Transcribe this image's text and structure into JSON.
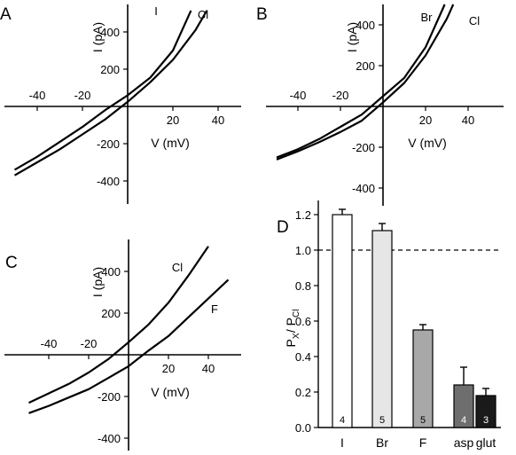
{
  "colors": {
    "ink": "#000000",
    "bar_I": "#ffffff",
    "bar_Br": "#e6e6e6",
    "bar_F": "#a8a8a8",
    "bar_asp": "#6e6e6e",
    "bar_glut": "#1a1a1a"
  },
  "chart_data": [
    {
      "panel": "A",
      "type": "line",
      "xlabel": "V (mV)",
      "ylabel": "I (pA)",
      "xticks": [
        -40,
        -20,
        20,
        40
      ],
      "yticks": [
        -400,
        -200,
        200,
        400
      ],
      "xlim": [
        -50,
        50
      ],
      "ylim": [
        -500,
        500
      ],
      "series": [
        {
          "name": "I",
          "x": [
            -50,
            -40,
            -30,
            -20,
            -10,
            0,
            10,
            20,
            28
          ],
          "y": [
            -340,
            -270,
            -190,
            -110,
            -20,
            60,
            155,
            300,
            515
          ]
        },
        {
          "name": "Cl",
          "x": [
            -50,
            -40,
            -30,
            -20,
            -10,
            0,
            10,
            20,
            30,
            35
          ],
          "y": [
            -370,
            -300,
            -230,
            -150,
            -70,
            25,
            130,
            250,
            410,
            515
          ]
        }
      ]
    },
    {
      "panel": "B",
      "type": "line",
      "xlabel": "V (mV)",
      "ylabel": "I (pA)",
      "xticks": [
        -40,
        -20,
        20,
        40
      ],
      "yticks": [
        -400,
        -200,
        200,
        400
      ],
      "xlim": [
        -50,
        50
      ],
      "ylim": [
        -500,
        500
      ],
      "series": [
        {
          "name": "Br",
          "x": [
            -50,
            -40,
            -30,
            -20,
            -10,
            0,
            10,
            20,
            29
          ],
          "y": [
            -250,
            -210,
            -160,
            -100,
            -40,
            50,
            140,
            290,
            500
          ]
        },
        {
          "name": "Cl",
          "x": [
            -50,
            -40,
            -30,
            -20,
            -10,
            0,
            10,
            20,
            30,
            33
          ],
          "y": [
            -260,
            -220,
            -175,
            -125,
            -70,
            20,
            115,
            250,
            430,
            500
          ]
        }
      ]
    },
    {
      "panel": "C",
      "type": "line",
      "xlabel": "V (mV)",
      "ylabel": "I (pA)",
      "xticks": [
        -40,
        -20,
        20,
        40
      ],
      "yticks": [
        -400,
        -200,
        200,
        400
      ],
      "xlim": [
        -50,
        50
      ],
      "ylim": [
        -500,
        500
      ],
      "series": [
        {
          "name": "Cl",
          "x": [
            -50,
            -40,
            -30,
            -20,
            -10,
            0,
            10,
            20,
            30,
            40
          ],
          "y": [
            -230,
            -185,
            -140,
            -85,
            -20,
            60,
            145,
            250,
            380,
            520
          ]
        },
        {
          "name": "F",
          "x": [
            -50,
            -40,
            -30,
            -20,
            -10,
            0,
            10,
            20,
            30,
            40,
            50
          ],
          "y": [
            -280,
            -245,
            -205,
            -165,
            -110,
            -55,
            20,
            90,
            180,
            270,
            360
          ]
        }
      ]
    },
    {
      "panel": "D",
      "type": "bar",
      "ylabel_main": "P",
      "ylabel_sub1": "X",
      "ylabel_mid": " / P",
      "ylabel_sub2": "Cl",
      "categories": [
        "I",
        "Br",
        "F",
        "asp",
        "glut"
      ],
      "values": [
        1.2,
        1.11,
        0.55,
        0.24,
        0.18
      ],
      "errors": [
        0.03,
        0.04,
        0.03,
        0.1,
        0.04
      ],
      "n": [
        "4",
        "5",
        "5",
        "4",
        "3"
      ],
      "yticks": [
        "0.0",
        "0.2",
        "0.4",
        "0.6",
        "0.8",
        "1.0",
        "1.2"
      ],
      "ylim": [
        0,
        1.26
      ],
      "reference_line": 1.0
    }
  ]
}
